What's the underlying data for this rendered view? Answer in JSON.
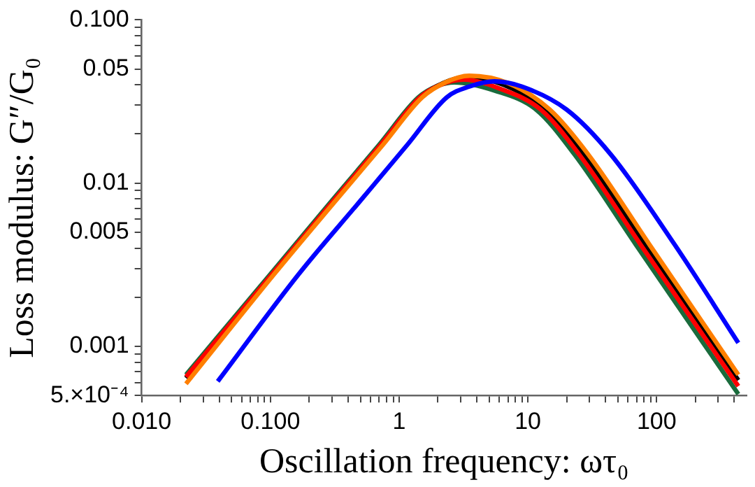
{
  "chart_data": {
    "type": "line",
    "xlabel": "Oscillation frequency: ωτ₀",
    "ylabel": "Loss modulus: G″/G₀",
    "log": "xy",
    "grid": false,
    "legend": false,
    "marker": "none",
    "line_style": "solid",
    "xlim": [
      0.01,
      500
    ],
    "ylim": [
      0.0005,
      0.1
    ],
    "xticks": [
      {
        "value": 0.01,
        "label": "0.010"
      },
      {
        "value": 0.02,
        "label": null
      },
      {
        "value": 0.03,
        "label": null
      },
      {
        "value": 0.04,
        "label": null
      },
      {
        "value": 0.05,
        "label": null
      },
      {
        "value": 0.06,
        "label": null
      },
      {
        "value": 0.07,
        "label": null
      },
      {
        "value": 0.08,
        "label": null
      },
      {
        "value": 0.09,
        "label": null
      },
      {
        "value": 0.1,
        "label": "0.100"
      },
      {
        "value": 0.2,
        "label": null
      },
      {
        "value": 0.3,
        "label": null
      },
      {
        "value": 0.4,
        "label": null
      },
      {
        "value": 0.5,
        "label": null
      },
      {
        "value": 0.6,
        "label": null
      },
      {
        "value": 0.7,
        "label": null
      },
      {
        "value": 0.8,
        "label": null
      },
      {
        "value": 0.9,
        "label": null
      },
      1,
      {
        "value": 2,
        "label": null
      },
      {
        "value": 3,
        "label": null
      },
      {
        "value": 4,
        "label": null
      },
      {
        "value": 5,
        "label": null
      },
      {
        "value": 6,
        "label": null
      },
      {
        "value": 7,
        "label": null
      },
      {
        "value": 8,
        "label": null
      },
      {
        "value": 9,
        "label": null
      },
      10,
      {
        "value": 20,
        "label": null
      },
      {
        "value": 30,
        "label": null
      },
      {
        "value": 40,
        "label": null
      },
      {
        "value": 50,
        "label": null
      },
      {
        "value": 60,
        "label": null
      },
      {
        "value": 70,
        "label": null
      },
      {
        "value": 80,
        "label": null
      },
      {
        "value": 90,
        "label": null
      },
      100,
      {
        "value": 200,
        "label": null
      },
      {
        "value": 300,
        "label": null
      },
      {
        "value": 400,
        "label": null
      }
    ],
    "yticks": [
      {
        "value": 0.0005,
        "label": "5.×10⁻⁴"
      },
      {
        "value": 0.0006,
        "label": null
      },
      {
        "value": 0.0007,
        "label": null
      },
      {
        "value": 0.0008,
        "label": null
      },
      {
        "value": 0.0009,
        "label": null
      },
      0.001,
      {
        "value": 0.002,
        "label": null
      },
      {
        "value": 0.003,
        "label": null
      },
      {
        "value": 0.004,
        "label": null
      },
      0.005,
      {
        "value": 0.006,
        "label": null
      },
      {
        "value": 0.007,
        "label": null
      },
      {
        "value": 0.008,
        "label": null
      },
      {
        "value": 0.009,
        "label": null
      },
      0.01,
      {
        "value": 0.02,
        "label": null
      },
      {
        "value": 0.03,
        "label": null
      },
      {
        "value": 0.04,
        "label": null
      },
      0.05,
      {
        "value": 0.06,
        "label": null
      },
      {
        "value": 0.07,
        "label": null
      },
      {
        "value": 0.08,
        "label": null
      },
      {
        "value": 0.09,
        "label": null
      },
      {
        "value": 0.1,
        "label": "0.100"
      }
    ],
    "series": [
      {
        "color": "#0000ff",
        "x": [
          0.039,
          0.166,
          0.5,
          1.16,
          2.34,
          3.5,
          5.5,
          9,
          20,
          44,
          138,
          431
        ],
        "values": [
          0.00061,
          0.00277,
          0.0078,
          0.0172,
          0.0335,
          0.039,
          0.042,
          0.039,
          0.0282,
          0.015,
          0.0042,
          0.00105
        ]
      },
      {
        "color": "#ff7f00",
        "x": [
          0.0221,
          0.107,
          0.321,
          0.75,
          1.51,
          2.3,
          3.5,
          7,
          14.8,
          29.4,
          88,
          431
        ],
        "values": [
          0.00059,
          0.00277,
          0.0078,
          0.0172,
          0.0335,
          0.0415,
          0.0455,
          0.041,
          0.0282,
          0.015,
          0.0042,
          0.00067
        ]
      },
      {
        "color": "#ff0000",
        "x": [
          0.0221,
          0.103,
          0.309,
          0.72,
          1.45,
          2.1,
          3.2,
          6,
          12.6,
          25,
          75,
          431
        ],
        "values": [
          0.00065,
          0.00277,
          0.0078,
          0.0172,
          0.0335,
          0.04,
          0.043,
          0.038,
          0.0282,
          0.015,
          0.0042,
          0.00057
        ]
      },
      {
        "color": "#000000",
        "x": [
          0.0221,
          0.104,
          0.312,
          0.728,
          1.47,
          2.2,
          3.4,
          6.5,
          13.7,
          27,
          81,
          431
        ],
        "values": [
          0.00064,
          0.00277,
          0.0078,
          0.0172,
          0.0335,
          0.041,
          0.0447,
          0.04,
          0.0282,
          0.015,
          0.0042,
          0.00062
        ]
      },
      {
        "color": "#1a6b3c",
        "x": [
          0.0221,
          0.1,
          0.3,
          0.7,
          1.41,
          2,
          2.69,
          5.5,
          11.6,
          23,
          69,
          431
        ],
        "values": [
          0.00067,
          0.00277,
          0.0078,
          0.0172,
          0.0335,
          0.0395,
          0.0414,
          0.0369,
          0.0282,
          0.015,
          0.0042,
          0.00051
        ]
      }
    ]
  }
}
